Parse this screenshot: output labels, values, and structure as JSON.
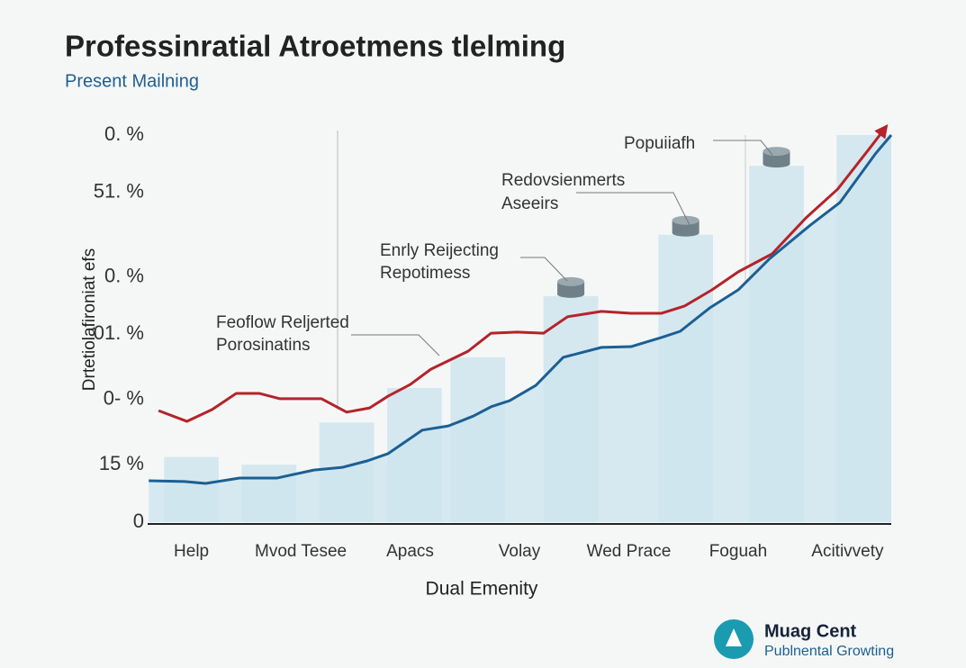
{
  "chart_data": {
    "type": "line",
    "title": "Professinratial Atroetmens tlelming",
    "subtitle": "Present Mailning",
    "y_label": "Drtetiolafironiat efs",
    "x_label": "Dual Emenity",
    "categories": [
      "Help",
      "Mvod Tesee",
      "Apacs",
      "Volay",
      "Wed Prace",
      "Foguah",
      "Acitivvety"
    ],
    "xlim": [
      -0.4,
      6.4
    ],
    "ylim": [
      0,
      105
    ],
    "yticks": [
      0,
      {
        "value": 15,
        "label": "15 %"
      },
      {
        "value": 32,
        "label": "0- %"
      },
      {
        "value": 49,
        "label": "01. %"
      },
      {
        "value": 64,
        "label": "0. %"
      },
      {
        "value": 86,
        "label": "51. %"
      },
      {
        "value": 101,
        "label": "0. %"
      }
    ],
    "bars": {
      "color": "#cfe5ee",
      "x": [
        0,
        0.71,
        1.42,
        2.04,
        2.62,
        3.47,
        4.52,
        5.35,
        6.15
      ],
      "values": [
        17,
        15,
        26,
        35,
        43,
        59,
        75,
        93,
        101
      ]
    },
    "series": [
      {
        "color": "#b5232b",
        "x": [
          -0.3,
          -0.04,
          0.19,
          0.41,
          0.62,
          0.81,
          1.19,
          1.42,
          1.63,
          1.8,
          2.0,
          2.19,
          2.53,
          2.74,
          2.98,
          3.22,
          3.44,
          3.75,
          4.02,
          4.3,
          4.51,
          4.76,
          5.0,
          5.31,
          5.62,
          5.91,
          6.22,
          6.34
        ],
        "values": [
          29.1,
          26.3,
          29.4,
          33.6,
          33.6,
          32.2,
          32.2,
          28.7,
          29.8,
          32.9,
          35.9,
          39.9,
          44.6,
          49.3,
          49.6,
          49.3,
          53.6,
          55.0,
          54.5,
          54.5,
          56.4,
          60.6,
          65.3,
          70.0,
          79.4,
          86.9,
          98.2,
          102.7
        ]
      },
      {
        "color": "#1c5f93",
        "area_color": "#d6e9f1",
        "x": [
          -0.39,
          -0.06,
          0.13,
          0.44,
          0.78,
          1.12,
          1.38,
          1.61,
          1.8,
          2.11,
          2.35,
          2.58,
          2.74,
          2.91,
          3.15,
          3.4,
          3.75,
          4.02,
          4.3,
          4.47,
          4.74,
          5.0,
          5.29,
          5.66,
          5.93,
          6.26,
          6.4
        ],
        "values": [
          10.8,
          10.6,
          10.1,
          11.5,
          11.5,
          13.6,
          14.3,
          16.0,
          17.9,
          24.0,
          25.1,
          27.7,
          30.1,
          31.7,
          35.7,
          43.0,
          45.6,
          45.8,
          48.2,
          49.8,
          55.9,
          60.6,
          68.8,
          77.5,
          83.4,
          96.3,
          101.0
        ]
      }
    ],
    "annotations": [
      [
        "Popuiiafh"
      ],
      [
        "Redovsienmerts",
        "Aseeirs"
      ],
      [
        "Enrly Reijecting",
        "Repotimess"
      ],
      [
        "Feoflow Reljerted",
        "Porosinatins"
      ]
    ],
    "logo": {
      "name": "Muag Cent",
      "tagline": "Publnental Growting"
    }
  }
}
